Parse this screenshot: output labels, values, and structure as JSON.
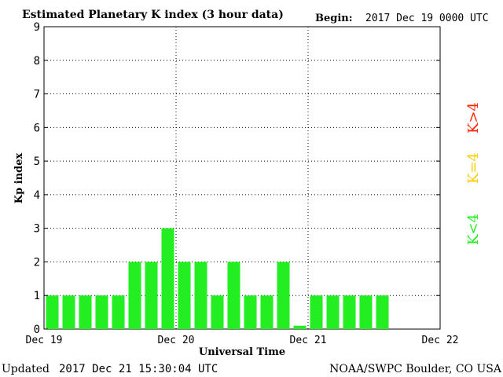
{
  "header": {
    "title": "Estimated Planetary K index (3 hour data)",
    "begin_label": "Begin:",
    "begin_value": "2017 Dec 19 0000 UTC"
  },
  "footer": {
    "updated_label": "Updated",
    "updated_value": "2017 Dec 21 15:30:04 UTC",
    "source": "NOAA/SWPC Boulder, CO USA"
  },
  "legend": {
    "items": [
      {
        "label": "K>4",
        "color": "#ff2200"
      },
      {
        "label": "K=4",
        "color": "#ffcc00"
      },
      {
        "label": "K<4",
        "color": "#22ee22"
      }
    ]
  },
  "chart_data": {
    "type": "bar",
    "title": "Estimated Planetary K index (3 hour data)",
    "xlabel": "Universal Time",
    "ylabel": "Kp index",
    "ylim": [
      0,
      9
    ],
    "yticks": [
      "0",
      "1",
      "2",
      "3",
      "4",
      "5",
      "6",
      "7",
      "8",
      "9"
    ],
    "x_ticks": [
      "Dec 19",
      "Dec 20",
      "Dec 21",
      "Dec 22"
    ],
    "slots": 24,
    "grid": true,
    "bar_color": "#22ee22",
    "values": [
      1,
      1,
      1,
      1,
      1,
      2,
      2,
      3,
      2,
      2,
      1,
      2,
      1,
      1,
      2,
      0.1,
      1,
      1,
      1,
      1,
      1
    ]
  }
}
